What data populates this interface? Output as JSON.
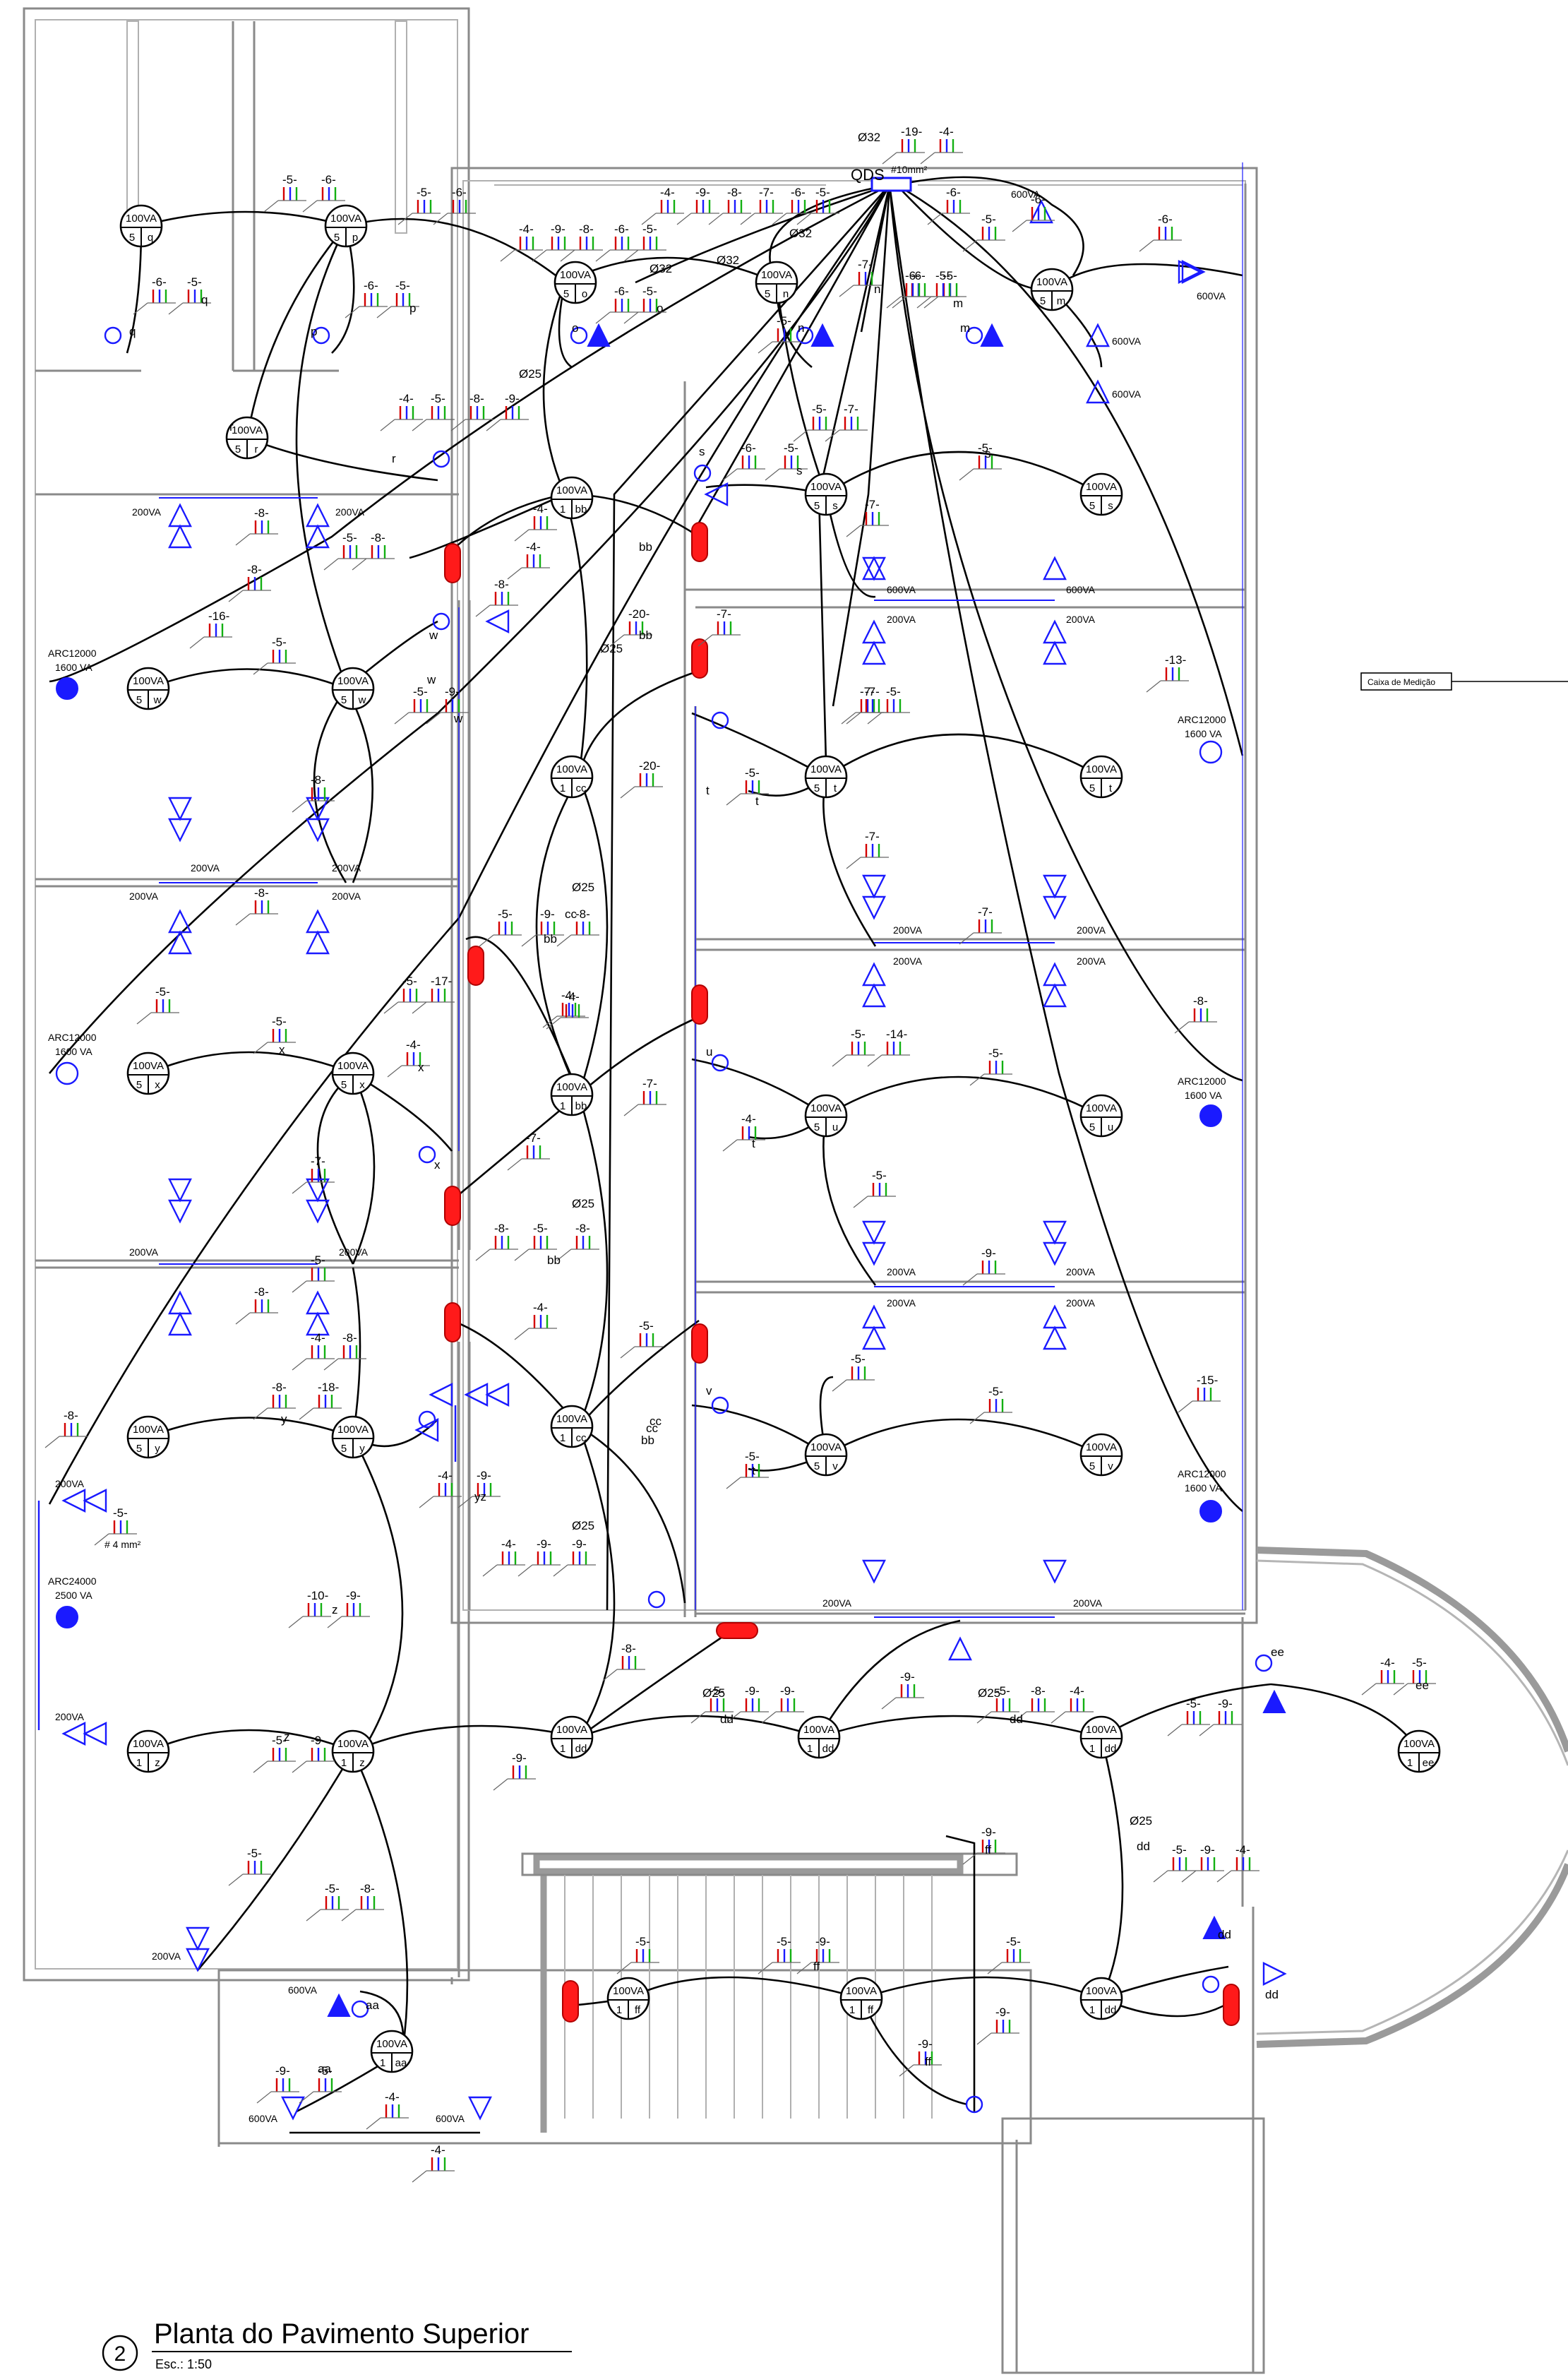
{
  "drawing": {
    "title": "Planta do Pavimento Superior",
    "scale": "Esc.: 1:50",
    "number": "2"
  },
  "panel": {
    "label": "QDS",
    "conduit": "Ø32"
  },
  "measurement_box": "Caixa de Medição",
  "conduit_labels": [
    "Ø32",
    "Ø32",
    "Ø32",
    "Ø25",
    "Ø25",
    "Ø25",
    "Ø25",
    "Ø25",
    "Ø25",
    "Ø25",
    "Ø25"
  ],
  "lamps": [
    {
      "power": "100VA",
      "circuit": "5",
      "switch": "q"
    },
    {
      "power": "100VA",
      "circuit": "5",
      "switch": "p"
    },
    {
      "power": "100VA",
      "circuit": "5",
      "switch": "o"
    },
    {
      "power": "100VA",
      "circuit": "5",
      "switch": "n"
    },
    {
      "power": "100VA",
      "circuit": "5",
      "switch": "m"
    },
    {
      "power": "100VA",
      "circuit": "5",
      "switch": "r"
    },
    {
      "power": "100VA",
      "circuit": "1",
      "switch": "bb"
    },
    {
      "power": "100VA",
      "circuit": "5",
      "switch": "s"
    },
    {
      "power": "100VA",
      "circuit": "5",
      "switch": "s"
    },
    {
      "power": "100VA",
      "circuit": "5",
      "switch": "w"
    },
    {
      "power": "100VA",
      "circuit": "5",
      "switch": "w"
    },
    {
      "power": "100VA",
      "circuit": "1",
      "switch": "cc"
    },
    {
      "power": "100VA",
      "circuit": "5",
      "switch": "t"
    },
    {
      "power": "100VA",
      "circuit": "5",
      "switch": "t"
    },
    {
      "power": "100VA",
      "circuit": "5",
      "switch": "x"
    },
    {
      "power": "100VA",
      "circuit": "5",
      "switch": "x"
    },
    {
      "power": "100VA",
      "circuit": "1",
      "switch": "bb"
    },
    {
      "power": "100VA",
      "circuit": "5",
      "switch": "u"
    },
    {
      "power": "100VA",
      "circuit": "5",
      "switch": "u"
    },
    {
      "power": "100VA",
      "circuit": "5",
      "switch": "y"
    },
    {
      "power": "100VA",
      "circuit": "5",
      "switch": "y"
    },
    {
      "power": "100VA",
      "circuit": "1",
      "switch": "cc"
    },
    {
      "power": "100VA",
      "circuit": "5",
      "switch": "v"
    },
    {
      "power": "100VA",
      "circuit": "5",
      "switch": "v"
    },
    {
      "power": "100VA",
      "circuit": "1",
      "switch": "z"
    },
    {
      "power": "100VA",
      "circuit": "1",
      "switch": "z"
    },
    {
      "power": "100VA",
      "circuit": "1",
      "switch": "dd"
    },
    {
      "power": "100VA",
      "circuit": "1",
      "switch": "dd"
    },
    {
      "power": "100VA",
      "circuit": "1",
      "switch": "dd"
    },
    {
      "power": "100VA",
      "circuit": "1",
      "switch": "ee"
    },
    {
      "power": "100VA",
      "circuit": "1",
      "switch": "aa"
    },
    {
      "power": "100VA",
      "circuit": "1",
      "switch": "ff"
    },
    {
      "power": "100VA",
      "circuit": "1",
      "switch": "ff"
    },
    {
      "power": "100VA",
      "circuit": "1",
      "switch": "dd"
    }
  ],
  "outlet_labels": [
    "600VA",
    "600VA",
    "600VA",
    "600VA",
    "200VA",
    "200VA",
    "200VA",
    "200VA",
    "200VA",
    "200VA",
    "200VA",
    "200VA",
    "600VA",
    "600VA",
    "200VA",
    "200VA",
    "200VA",
    "200VA",
    "200VA",
    "200VA",
    "200VA",
    "200VA",
    "200VA",
    "200VA",
    "200VA",
    "200VA",
    "200VA",
    "200VA",
    "600VA",
    "600VA",
    "600VA",
    "200VA"
  ],
  "ac_units": [
    {
      "model": "ARC12000",
      "power": "1600 VA"
    },
    {
      "model": "ARC12000",
      "power": "1600 VA"
    },
    {
      "model": "ARC12000",
      "power": "1600 VA"
    },
    {
      "model": "ARC12000",
      "power": "1600 VA"
    },
    {
      "model": "ARC12000",
      "power": "1600 VA"
    },
    {
      "model": "ARC24000",
      "power": "2500 VA"
    }
  ],
  "circuit_tags": [
    "-19-",
    "-4-",
    "-4-",
    "-9-",
    "-8-",
    "-7-",
    "-6-",
    "-5-",
    "-5-",
    "-6-",
    "-5-",
    "-6-",
    "-4-",
    "-9-",
    "-8-",
    "-6-",
    "-5-",
    "-6-",
    "-5-",
    "-6-",
    "-5-",
    "-6-",
    "-5-",
    "-6-",
    "-5-",
    "-6-",
    "-5-",
    "-6-",
    "-5-",
    "-6-",
    "-6-",
    "-4-",
    "-5-",
    "-8-",
    "-9-",
    "-5-",
    "-7-",
    "-6-",
    "-5-",
    "-7-",
    "-5-",
    "-5-",
    "-7-",
    "-8-",
    "-8-",
    "-5-",
    "-8-",
    "-4-",
    "-16-",
    "-5-",
    "-4-",
    "-8-",
    "-5-",
    "-9-",
    "-20-",
    "-7-",
    "-7-",
    "-13-",
    "-8-",
    "-8-",
    "-20-",
    "-7-",
    "-5-",
    "-5-",
    "-7-",
    "-7-",
    "-4-",
    "-5-",
    "-9-",
    "-8-",
    "-5-",
    "-17-",
    "-5-",
    "-5-",
    "-4-",
    "-4-",
    "-7-",
    "-5-",
    "-14-",
    "-8-",
    "-4-",
    "-5-",
    "-5-",
    "-9-",
    "-7-",
    "-7-",
    "-8-",
    "-5-",
    "-8-",
    "-5-",
    "-8-",
    "-4-",
    "-8-",
    "-4-",
    "-5-",
    "-5-",
    "-15-",
    "-5-",
    "-8-",
    "-18-",
    "-5-",
    "-8-",
    "-4-",
    "-9-",
    "-5-",
    "-8-",
    "-5-",
    "-9-",
    "-9-",
    "-9-",
    "-5-",
    "-8-",
    "-4-",
    "-5-",
    "-9-",
    "-4-",
    "-5-",
    "-4-",
    "-9-",
    "-9-",
    "-10-",
    "-9-",
    "-5-",
    "-9-",
    "-9-",
    "-5-",
    "-5-",
    "-8-",
    "-9-",
    "-5-",
    "-4-",
    "-4-",
    "-5-",
    "-5-",
    "-9-",
    "-5-",
    "-9-",
    "-9-",
    "-9-",
    "-5-",
    "-9-",
    "-4-"
  ],
  "tag_letters": [
    "q",
    "q",
    "p",
    "p",
    "o",
    "o",
    "n",
    "n",
    "m",
    "m",
    "r",
    "r",
    "s",
    "s",
    "bb",
    "bb",
    "w",
    "w",
    "w",
    "cc",
    "bb",
    "t",
    "t",
    "x",
    "x",
    "x",
    "u",
    "t",
    "cc",
    "bb",
    "y",
    "z",
    "yz",
    "cc",
    "bb",
    "v",
    "t",
    "z",
    "dd",
    "dd",
    "dd",
    "ee",
    "ee",
    "aa",
    "aa",
    "ff",
    "ff",
    "ff",
    "dd",
    "dd",
    "s"
  ],
  "wire_note": "# 4 mm²",
  "panel_note": "#10mm²"
}
